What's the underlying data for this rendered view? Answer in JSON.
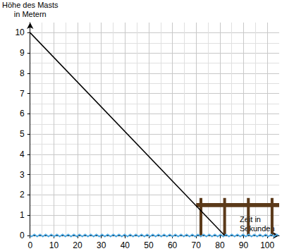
{
  "chart_data": {
    "type": "line",
    "x_label": "Zeit in\nSekunden",
    "y_label": "Höhe des Masts\nin Metern",
    "x": [
      0,
      82
    ],
    "values": [
      10,
      0
    ],
    "color": "#000000",
    "xlim": [
      0,
      105
    ],
    "ylim": [
      0,
      10.5
    ],
    "xticks": [
      0,
      10,
      20,
      30,
      40,
      50,
      60,
      70,
      80,
      90,
      100
    ],
    "yticks": [
      0,
      1,
      2,
      3,
      4,
      5,
      6,
      7,
      8,
      9,
      10
    ],
    "grid": true
  }
}
